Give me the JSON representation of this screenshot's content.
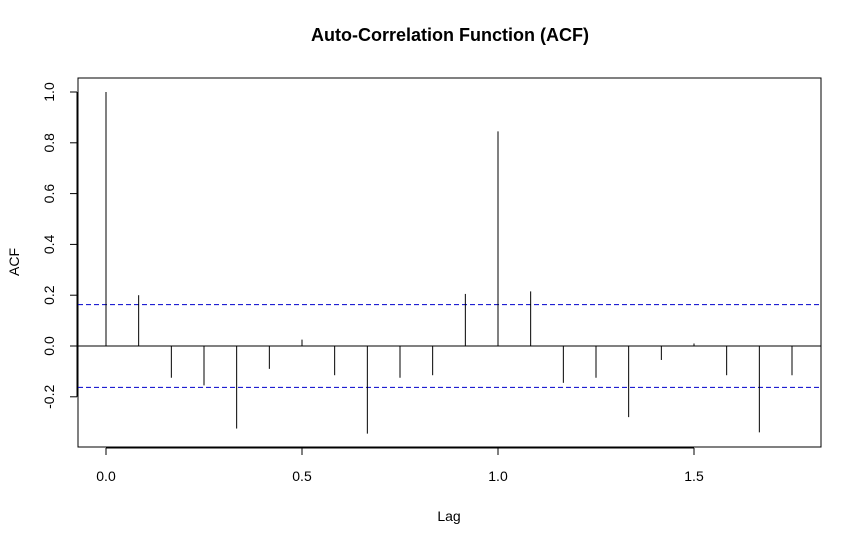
{
  "chart_data": {
    "type": "bar",
    "title": "Auto-Correlation Function (ACF)",
    "xlabel": "Lag",
    "ylabel": "ACF",
    "xlim": [
      -0.08,
      1.83
    ],
    "ylim": [
      -0.4,
      1.05
    ],
    "x_ticks": [
      {
        "value": 0.0,
        "label": "0.0"
      },
      {
        "value": 0.5,
        "label": "0.5"
      },
      {
        "value": 1.0,
        "label": "1.0"
      },
      {
        "value": 1.5,
        "label": "1.5"
      }
    ],
    "y_ticks": [
      {
        "value": -0.2,
        "label": "-0.2"
      },
      {
        "value": 0.0,
        "label": "0.0"
      },
      {
        "value": 0.2,
        "label": "0.2"
      },
      {
        "value": 0.4,
        "label": "0.4"
      },
      {
        "value": 0.6,
        "label": "0.6"
      },
      {
        "value": 0.8,
        "label": "0.8"
      },
      {
        "value": 1.0,
        "label": "1.0"
      }
    ],
    "lags": [
      0.0,
      0.0833,
      0.1667,
      0.25,
      0.3333,
      0.4167,
      0.5,
      0.5833,
      0.6667,
      0.75,
      0.8333,
      0.9167,
      1.0,
      1.0833,
      1.1667,
      1.25,
      1.3333,
      1.4167,
      1.5,
      1.5833,
      1.6667,
      1.75
    ],
    "values": [
      1.0,
      0.2,
      -0.125,
      -0.155,
      -0.325,
      -0.09,
      0.025,
      -0.115,
      -0.345,
      -0.125,
      -0.115,
      0.205,
      0.845,
      0.215,
      -0.145,
      -0.125,
      -0.28,
      -0.055,
      0.01,
      -0.115,
      -0.34,
      -0.115
    ],
    "confidence_bounds": [
      0.163,
      -0.163
    ],
    "colors": {
      "bars": "#000000",
      "confidence": "#0000cc",
      "frame": "#000000"
    },
    "grid": false
  }
}
